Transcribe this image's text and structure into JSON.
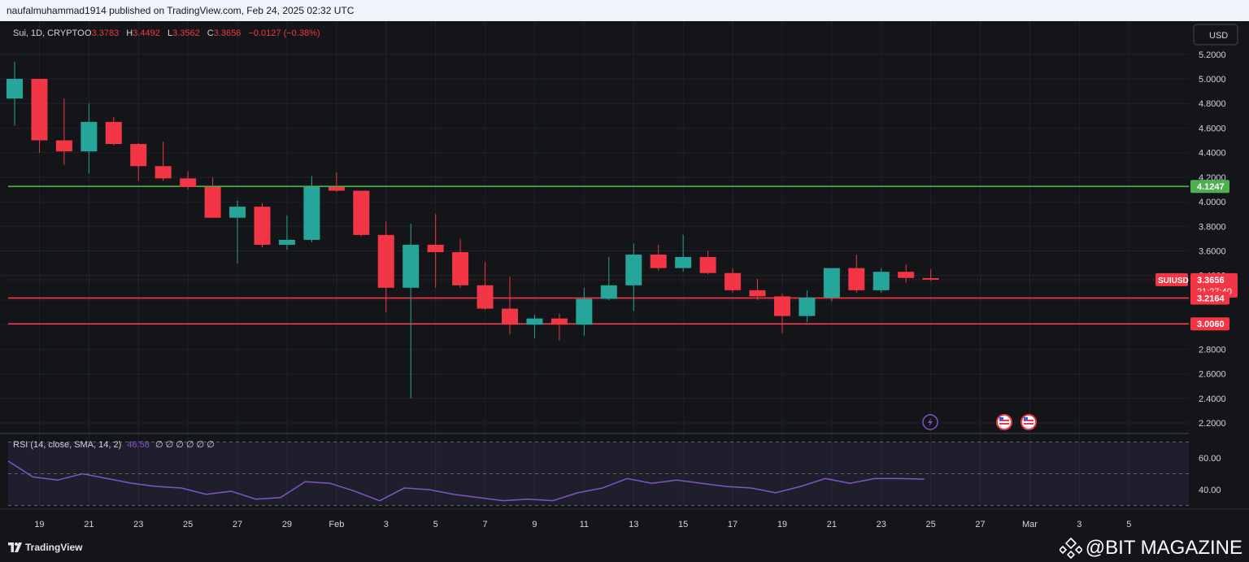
{
  "header": {
    "published_text": "naufalmuhammad1914 published on TradingView.com, Feb 24, 2025 02:32 UTC"
  },
  "legend": {
    "symbol": "Sui, 1D, CRYPTO",
    "o_label": "O",
    "o_value": "3.3783",
    "h_label": "H",
    "h_value": "3.4492",
    "l_label": "L",
    "l_value": "3.3562",
    "c_label": "C",
    "c_value": "3.3656",
    "change": "−0.0127 (−0.38%)"
  },
  "currency": "USD",
  "price_scale": {
    "ticks": [
      "5.2000",
      "5.0000",
      "4.8000",
      "4.6000",
      "4.4000",
      "4.2000",
      "4.0000",
      "3.8000",
      "3.6000",
      "3.4000",
      "3.2000",
      "3.0000",
      "2.8000",
      "2.6000",
      "2.4000",
      "2.2000"
    ]
  },
  "badges": {
    "resistance": "4.1247",
    "symbol_tag": "SUIUSD",
    "last_price": "3.3656",
    "countdown": "21:27:40",
    "support1": "3.2164",
    "support2": "3.0060"
  },
  "rsi": {
    "label": "RSI (14, close, SMA, 14, 2)",
    "value": "46.58",
    "placeholders": "∅ ∅ ∅ ∅ ∅ ∅",
    "ticks": [
      "60.00",
      "40.00"
    ]
  },
  "time_axis": {
    "labels": [
      "19",
      "21",
      "23",
      "25",
      "27",
      "29",
      "Feb",
      "3",
      "5",
      "7",
      "9",
      "11",
      "13",
      "15",
      "17",
      "19",
      "21",
      "23",
      "25",
      "27",
      "Mar",
      "3",
      "5"
    ]
  },
  "footer": {
    "tv_brand": "TradingView",
    "watermark": "@BIT MAGAZINE"
  },
  "colors": {
    "up": "#26a69a",
    "down": "#f23645",
    "resistance_line": "#4caf50",
    "support_line": "#f23645",
    "rsi_line": "#7e57c2"
  },
  "chart_data": {
    "type": "candlestick",
    "symbol": "SUIUSD",
    "interval": "1D",
    "ylim": [
      2.2,
      5.2
    ],
    "horizontal_lines": [
      {
        "price": 4.1247,
        "color": "#4caf50"
      },
      {
        "price": 3.2164,
        "color": "#f23645"
      },
      {
        "price": 3.006,
        "color": "#f23645"
      }
    ],
    "candles": [
      {
        "date": "Jan 18",
        "o": 4.84,
        "h": 5.14,
        "l": 4.62,
        "c": 5.0
      },
      {
        "date": "Jan 19",
        "o": 5.0,
        "h": 5.0,
        "l": 4.4,
        "c": 4.5
      },
      {
        "date": "Jan 20",
        "o": 4.5,
        "h": 4.84,
        "l": 4.3,
        "c": 4.41
      },
      {
        "date": "Jan 21",
        "o": 4.41,
        "h": 4.8,
        "l": 4.23,
        "c": 4.65
      },
      {
        "date": "Jan 22",
        "o": 4.65,
        "h": 4.69,
        "l": 4.46,
        "c": 4.47
      },
      {
        "date": "Jan 23",
        "o": 4.47,
        "h": 4.48,
        "l": 4.17,
        "c": 4.29
      },
      {
        "date": "Jan 24",
        "o": 4.29,
        "h": 4.49,
        "l": 4.17,
        "c": 4.19
      },
      {
        "date": "Jan 25",
        "o": 4.19,
        "h": 4.25,
        "l": 4.1,
        "c": 4.12
      },
      {
        "date": "Jan 26",
        "o": 4.12,
        "h": 4.2,
        "l": 3.87,
        "c": 3.87
      },
      {
        "date": "Jan 27",
        "o": 3.87,
        "h": 4.01,
        "l": 3.5,
        "c": 3.96
      },
      {
        "date": "Jan 28",
        "o": 3.96,
        "h": 3.99,
        "l": 3.63,
        "c": 3.65
      },
      {
        "date": "Jan 29",
        "o": 3.65,
        "h": 3.89,
        "l": 3.61,
        "c": 3.69
      },
      {
        "date": "Jan 30",
        "o": 3.69,
        "h": 4.21,
        "l": 3.67,
        "c": 4.12
      },
      {
        "date": "Jan 31",
        "o": 4.12,
        "h": 4.24,
        "l": 4.08,
        "c": 4.09
      },
      {
        "date": "Feb 1",
        "o": 4.09,
        "h": 4.09,
        "l": 3.72,
        "c": 3.73
      },
      {
        "date": "Feb 2",
        "o": 3.73,
        "h": 3.84,
        "l": 3.1,
        "c": 3.3
      },
      {
        "date": "Feb 3",
        "o": 3.3,
        "h": 3.82,
        "l": 2.4,
        "c": 3.65
      },
      {
        "date": "Feb 4",
        "o": 3.65,
        "h": 3.9,
        "l": 3.3,
        "c": 3.59
      },
      {
        "date": "Feb 5",
        "o": 3.59,
        "h": 3.7,
        "l": 3.3,
        "c": 3.32
      },
      {
        "date": "Feb 6",
        "o": 3.32,
        "h": 3.51,
        "l": 3.12,
        "c": 3.13
      },
      {
        "date": "Feb 7",
        "o": 3.13,
        "h": 3.39,
        "l": 2.92,
        "c": 3.0
      },
      {
        "date": "Feb 8",
        "o": 3.0,
        "h": 3.08,
        "l": 2.89,
        "c": 3.05
      },
      {
        "date": "Feb 9",
        "o": 3.05,
        "h": 3.09,
        "l": 2.87,
        "c": 3.0
      },
      {
        "date": "Feb 10",
        "o": 3.0,
        "h": 3.3,
        "l": 2.91,
        "c": 3.21
      },
      {
        "date": "Feb 11",
        "o": 3.21,
        "h": 3.55,
        "l": 3.2,
        "c": 3.32
      },
      {
        "date": "Feb 12",
        "o": 3.32,
        "h": 3.66,
        "l": 3.11,
        "c": 3.57
      },
      {
        "date": "Feb 13",
        "o": 3.57,
        "h": 3.65,
        "l": 3.44,
        "c": 3.46
      },
      {
        "date": "Feb 14",
        "o": 3.46,
        "h": 3.73,
        "l": 3.43,
        "c": 3.55
      },
      {
        "date": "Feb 15",
        "o": 3.55,
        "h": 3.6,
        "l": 3.41,
        "c": 3.42
      },
      {
        "date": "Feb 16",
        "o": 3.42,
        "h": 3.46,
        "l": 3.26,
        "c": 3.28
      },
      {
        "date": "Feb 17",
        "o": 3.28,
        "h": 3.37,
        "l": 3.2,
        "c": 3.23
      },
      {
        "date": "Feb 18",
        "o": 3.23,
        "h": 3.25,
        "l": 2.93,
        "c": 3.07
      },
      {
        "date": "Feb 19",
        "o": 3.07,
        "h": 3.28,
        "l": 3.02,
        "c": 3.22
      },
      {
        "date": "Feb 20",
        "o": 3.22,
        "h": 3.46,
        "l": 3.19,
        "c": 3.46
      },
      {
        "date": "Feb 21",
        "o": 3.46,
        "h": 3.57,
        "l": 3.26,
        "c": 3.28
      },
      {
        "date": "Feb 22",
        "o": 3.28,
        "h": 3.46,
        "l": 3.26,
        "c": 3.43
      },
      {
        "date": "Feb 23",
        "o": 3.43,
        "h": 3.49,
        "l": 3.34,
        "c": 3.38
      },
      {
        "date": "Feb 24",
        "o": 3.3783,
        "h": 3.4492,
        "l": 3.3562,
        "c": 3.3656
      }
    ],
    "rsi": {
      "ylim": [
        30,
        70
      ],
      "values": [
        58,
        48,
        46,
        50,
        47,
        44,
        42,
        41,
        37,
        39,
        34,
        35,
        45,
        44,
        39,
        33,
        41,
        40,
        37,
        35,
        33,
        34,
        33,
        38,
        41,
        47,
        44,
        46,
        44,
        42,
        41,
        38,
        42,
        47,
        44,
        47,
        47,
        46.58
      ]
    }
  }
}
